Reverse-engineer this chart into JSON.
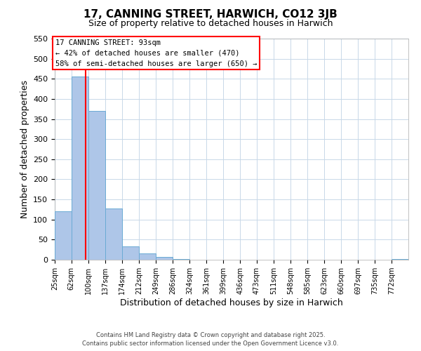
{
  "title": "17, CANNING STREET, HARWICH, CO12 3JB",
  "subtitle": "Size of property relative to detached houses in Harwich",
  "xlabel": "Distribution of detached houses by size in Harwich",
  "ylabel": "Number of detached properties",
  "bar_labels": [
    "25sqm",
    "62sqm",
    "100sqm",
    "137sqm",
    "174sqm",
    "212sqm",
    "249sqm",
    "286sqm",
    "324sqm",
    "361sqm",
    "399sqm",
    "436sqm",
    "473sqm",
    "511sqm",
    "548sqm",
    "585sqm",
    "623sqm",
    "660sqm",
    "697sqm",
    "735sqm",
    "772sqm"
  ],
  "bar_values": [
    120,
    455,
    370,
    128,
    34,
    16,
    7,
    2,
    0,
    0,
    0,
    0,
    0,
    0,
    0,
    0,
    0,
    0,
    0,
    0,
    2
  ],
  "bar_color": "#aec6e8",
  "bar_edge_color": "#6aaad4",
  "grid_color": "#c8d8e8",
  "annotation_box_text_line1": "17 CANNING STREET: 93sqm",
  "annotation_box_text_line2": "← 42% of detached houses are smaller (470)",
  "annotation_box_text_line3": "58% of semi-detached houses are larger (650) →",
  "red_line_x": 93,
  "ylim": [
    0,
    550
  ],
  "yticks": [
    0,
    50,
    100,
    150,
    200,
    250,
    300,
    350,
    400,
    450,
    500,
    550
  ],
  "bin_edges": [
    25,
    62,
    100,
    137,
    174,
    212,
    249,
    286,
    324,
    361,
    399,
    436,
    473,
    511,
    548,
    585,
    623,
    660,
    697,
    735,
    772
  ],
  "footer_line1": "Contains HM Land Registry data © Crown copyright and database right 2025.",
  "footer_line2": "Contains public sector information licensed under the Open Government Licence v3.0."
}
